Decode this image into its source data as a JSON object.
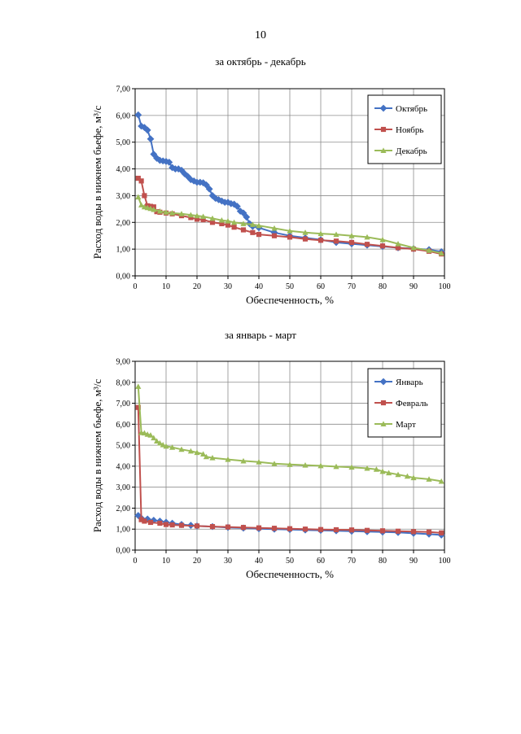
{
  "page": {
    "number": "10",
    "captions": [
      "за октябрь - декабрь",
      "за январь - март"
    ]
  },
  "chart_data": [
    {
      "type": "line",
      "title": "за октябрь - декабрь",
      "xlabel": "Обеспеченность, %",
      "ylabel": "Расход воды в нижнем бьефе, м³/с",
      "xlim": [
        0,
        100
      ],
      "ylim": [
        0,
        7
      ],
      "xticks": [
        "0",
        "10",
        "20",
        "30",
        "40",
        "50",
        "60",
        "70",
        "80",
        "90",
        "100"
      ],
      "yticks": [
        "0,00",
        "1,00",
        "2,00",
        "3,00",
        "4,00",
        "5,00",
        "6,00",
        "7,00"
      ],
      "grid": true,
      "legend_position": "top-right",
      "series": [
        {
          "name": "Октябрь",
          "color": "#4472C4",
          "marker": "diamond",
          "x": [
            1,
            2,
            3,
            4,
            5,
            6,
            7,
            8,
            9,
            10,
            11,
            12,
            13,
            14,
            15,
            16,
            17,
            18,
            19,
            20,
            21,
            22,
            23,
            24,
            25,
            26,
            27,
            28,
            29,
            30,
            31,
            32,
            33,
            34,
            35,
            36,
            37,
            38,
            40,
            45,
            50,
            55,
            60,
            65,
            70,
            75,
            80,
            85,
            90,
            95,
            99
          ],
          "values": [
            6.02,
            5.6,
            5.55,
            5.45,
            5.12,
            4.55,
            4.4,
            4.32,
            4.3,
            4.28,
            4.25,
            4.05,
            4.0,
            4.0,
            3.95,
            3.82,
            3.72,
            3.6,
            3.55,
            3.5,
            3.5,
            3.48,
            3.4,
            3.25,
            3.0,
            2.9,
            2.85,
            2.8,
            2.75,
            2.75,
            2.7,
            2.68,
            2.6,
            2.42,
            2.35,
            2.2,
            1.95,
            1.85,
            1.8,
            1.62,
            1.5,
            1.42,
            1.35,
            1.25,
            1.2,
            1.15,
            1.1,
            1.05,
            1.02,
            0.98,
            0.9
          ]
        },
        {
          "name": "Ноябрь",
          "color": "#C0504D",
          "marker": "square",
          "x": [
            1,
            2,
            3,
            4,
            5,
            6,
            7,
            8,
            10,
            12,
            15,
            18,
            20,
            22,
            25,
            28,
            30,
            32,
            35,
            38,
            40,
            45,
            50,
            55,
            60,
            65,
            70,
            75,
            80,
            85,
            90,
            95,
            99
          ],
          "values": [
            3.65,
            3.55,
            3.0,
            2.62,
            2.6,
            2.58,
            2.4,
            2.38,
            2.35,
            2.32,
            2.25,
            2.18,
            2.12,
            2.1,
            2.0,
            1.95,
            1.9,
            1.82,
            1.72,
            1.62,
            1.55,
            1.5,
            1.45,
            1.38,
            1.33,
            1.3,
            1.25,
            1.18,
            1.12,
            1.05,
            1.0,
            0.92,
            0.82
          ]
        },
        {
          "name": "Декабрь",
          "color": "#9BBB59",
          "marker": "triangle",
          "x": [
            1,
            2,
            3,
            4,
            5,
            6,
            8,
            10,
            12,
            15,
            18,
            20,
            22,
            25,
            28,
            30,
            32,
            35,
            38,
            40,
            45,
            50,
            55,
            60,
            65,
            70,
            75,
            80,
            85,
            90,
            95,
            99
          ],
          "values": [
            2.95,
            2.65,
            2.58,
            2.55,
            2.52,
            2.48,
            2.42,
            2.38,
            2.35,
            2.32,
            2.28,
            2.25,
            2.22,
            2.15,
            2.08,
            2.05,
            2.0,
            1.95,
            1.92,
            1.88,
            1.78,
            1.68,
            1.62,
            1.58,
            1.55,
            1.5,
            1.45,
            1.35,
            1.2,
            1.05,
            0.95,
            0.85
          ]
        }
      ]
    },
    {
      "type": "line",
      "title": "за январь - март",
      "xlabel": "Обеспеченность, %",
      "ylabel": "Расход воды в нижнем бьефе, м³/с",
      "xlim": [
        0,
        100
      ],
      "ylim": [
        0,
        9
      ],
      "xticks": [
        "0",
        "10",
        "20",
        "30",
        "40",
        "50",
        "60",
        "70",
        "80",
        "90",
        "100"
      ],
      "yticks": [
        "0,00",
        "1,00",
        "2,00",
        "3,00",
        "4,00",
        "5,00",
        "6,00",
        "7,00",
        "8,00",
        "9,00"
      ],
      "grid": true,
      "legend_position": "top-right",
      "series": [
        {
          "name": "Январь",
          "color": "#4472C4",
          "marker": "diamond",
          "x": [
            1,
            2,
            4,
            6,
            8,
            10,
            12,
            15,
            18,
            20,
            25,
            30,
            35,
            40,
            45,
            50,
            55,
            60,
            65,
            70,
            75,
            80,
            85,
            90,
            95,
            99
          ],
          "values": [
            1.65,
            1.52,
            1.48,
            1.42,
            1.38,
            1.33,
            1.28,
            1.22,
            1.18,
            1.15,
            1.12,
            1.08,
            1.05,
            1.02,
            1.0,
            0.98,
            0.96,
            0.94,
            0.92,
            0.9,
            0.88,
            0.86,
            0.84,
            0.8,
            0.76,
            0.72
          ]
        },
        {
          "name": "Февраль",
          "color": "#C0504D",
          "marker": "square",
          "x": [
            1,
            2,
            3,
            5,
            8,
            10,
            12,
            15,
            20,
            25,
            30,
            35,
            40,
            45,
            50,
            55,
            60,
            65,
            70,
            75,
            80,
            85,
            90,
            95,
            99
          ],
          "values": [
            6.8,
            1.45,
            1.38,
            1.32,
            1.28,
            1.22,
            1.2,
            1.18,
            1.15,
            1.12,
            1.1,
            1.08,
            1.06,
            1.04,
            1.02,
            1.0,
            0.98,
            0.97,
            0.96,
            0.94,
            0.92,
            0.9,
            0.88,
            0.86,
            0.82
          ]
        },
        {
          "name": "Март",
          "color": "#9BBB59",
          "marker": "triangle",
          "x": [
            1,
            2,
            3,
            4,
            5,
            6,
            7,
            8,
            9,
            10,
            12,
            15,
            18,
            20,
            22,
            23,
            25,
            30,
            35,
            40,
            45,
            50,
            55,
            60,
            65,
            70,
            75,
            78,
            80,
            82,
            85,
            88,
            90,
            95,
            99
          ],
          "values": [
            7.8,
            5.6,
            5.58,
            5.52,
            5.48,
            5.35,
            5.2,
            5.1,
            5.02,
            4.95,
            4.9,
            4.8,
            4.72,
            4.65,
            4.58,
            4.45,
            4.4,
            4.32,
            4.25,
            4.2,
            4.12,
            4.08,
            4.05,
            4.02,
            3.98,
            3.95,
            3.9,
            3.85,
            3.75,
            3.68,
            3.6,
            3.52,
            3.45,
            3.38,
            3.28
          ]
        }
      ]
    }
  ]
}
